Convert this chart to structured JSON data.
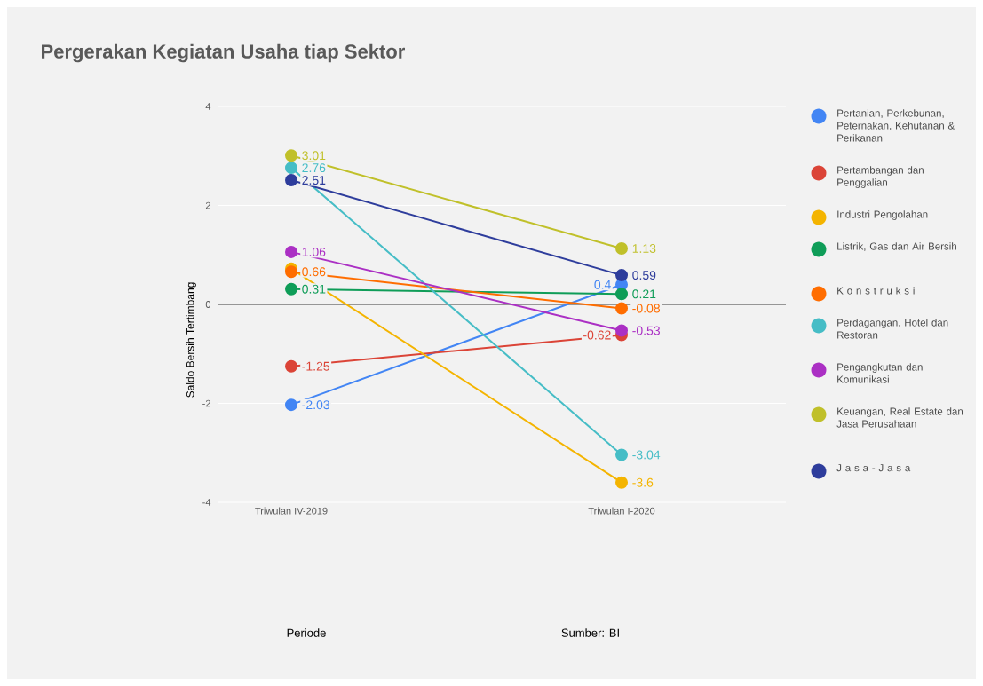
{
  "chart_data": {
    "type": "line",
    "title": "Pergerakan Kegiatan Usaha tiap Sektor",
    "ylabel": "Saldo Bersih Tertimbang",
    "annotations": [
      "Periode",
      "Sumber: BI"
    ],
    "categories": [
      "Triwulan IV-2019",
      "Triwulan I-2020"
    ],
    "ylim": [
      -4,
      4
    ],
    "yticks": [
      -4,
      -2,
      0,
      2,
      4
    ],
    "grid": "y",
    "legend": "right",
    "marker": "circle",
    "line_style": "solid",
    "ref_lines": [
      {
        "axis": "y",
        "value": 0,
        "color": "#757575"
      }
    ],
    "series": [
      {
        "name": "Pertanian, Perkebunan, Peternakan, Kehutanan & Perikanan",
        "color": "#4285f4",
        "values": [
          -2.03,
          0.4
        ],
        "value_labels": [
          "-2.03",
          "0.4"
        ]
      },
      {
        "name": "Pertambangan dan Penggalian",
        "color": "#db4437",
        "values": [
          -1.25,
          -0.62
        ],
        "value_labels": [
          "-1.25",
          "-0.62"
        ]
      },
      {
        "name": "Industri Pengolahan",
        "color": "#f4b400",
        "values": [
          0.72,
          -3.6
        ],
        "value_labels": [
          null,
          "-3.6"
        ]
      },
      {
        "name": "Listrik, Gas dan Air Bersih",
        "color": "#0f9d58",
        "values": [
          0.31,
          0.21
        ],
        "value_labels": [
          "0.31",
          "0.21"
        ]
      },
      {
        "name": "K o n s t r u k s i",
        "color": "#ff6d00",
        "values": [
          0.66,
          -0.08
        ],
        "value_labels": [
          "0.66",
          "-0.08"
        ]
      },
      {
        "name": "Perdagangan, Hotel dan Restoran",
        "color": "#46bdc6",
        "values": [
          2.76,
          -3.04
        ],
        "value_labels": [
          "2.76",
          "-3.04"
        ]
      },
      {
        "name": "Pengangkutan dan Komunikasi",
        "color": "#ab30c4",
        "values": [
          1.06,
          -0.53
        ],
        "value_labels": [
          "1.06",
          "-0.53"
        ]
      },
      {
        "name": "Keuangan, Real Estate dan Jasa Perusahaan",
        "color": "#c0c02a",
        "values": [
          3.01,
          1.13
        ],
        "value_labels": [
          "3.01",
          "1.13"
        ]
      },
      {
        "name": "J a s a - J a s a",
        "color": "#2e3d9c",
        "values": [
          2.51,
          0.59
        ],
        "value_labels": [
          "2.51",
          "0.59"
        ]
      }
    ]
  }
}
